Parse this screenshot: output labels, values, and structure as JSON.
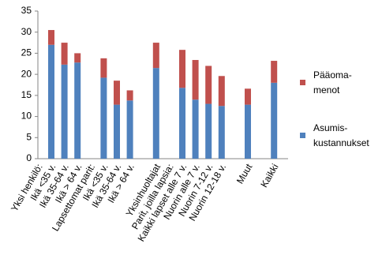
{
  "chart_data": {
    "type": "stacked_bar",
    "categories": [
      "Yksi henkilö:",
      "Ikä <35 v.",
      "Ikä 35-64 v.",
      "Ikä > 64 v.",
      "Lapsettomat parit:",
      "Ikä <35 v.",
      "Ikä 35-64 v.",
      "Ikä > 64 v.",
      null,
      "Yksinhuoltajat",
      "Parit, joilla lapsia:",
      "Kaikki lapset alle 7 v.",
      "Nuorin alle 7 v.",
      "Nuorin 7-12 v.",
      "Nuorin 12-18 v.",
      null,
      "Muut",
      null,
      "Kaikki"
    ],
    "series": [
      {
        "name": "Asumis-\nkustannukset",
        "color": "#4f81bd",
        "values": [
          null,
          27,
          22.3,
          22.8,
          null,
          19.2,
          12.8,
          13.8,
          null,
          21.5,
          null,
          16.8,
          14,
          13,
          12.5,
          null,
          12.8,
          null,
          18
        ]
      },
      {
        "name": "Pääoma-\nmenot",
        "color": "#c0504d",
        "values": [
          null,
          3.5,
          5.2,
          2.2,
          null,
          4.6,
          5.7,
          2.4,
          null,
          6.0,
          null,
          9.0,
          9.4,
          9.0,
          7.1,
          null,
          3.8,
          null,
          5.2
        ]
      }
    ],
    "ylim": [
      0,
      35
    ],
    "yticks": [
      0,
      5,
      10,
      15,
      20,
      25,
      30,
      35
    ],
    "grid": false,
    "legend": "right"
  }
}
